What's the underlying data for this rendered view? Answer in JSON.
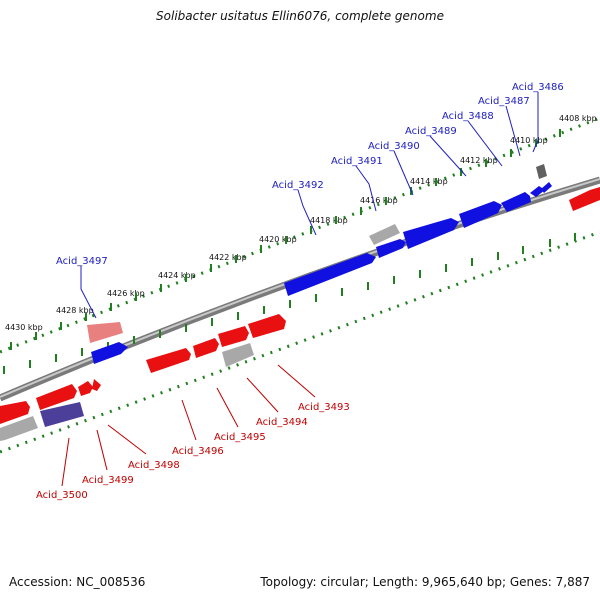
{
  "title": "Solibacter usitatus Ellin6076, complete genome",
  "accession": "Accession: NC_008536",
  "topology": "Topology: circular; Length: 9,965,640 bp; Genes: 7,887",
  "colors": {
    "forward_gene": "#1010e0",
    "reverse_gene": "#e81010",
    "rna_gene": "#a0a0a0",
    "forward_label": "#2020c0",
    "reverse_label": "#c00000",
    "ruler": "#208020",
    "backbone": "#808080"
  },
  "ruler_ticks": [
    "4408 kbp",
    "4410 kbp",
    "4412 kbp",
    "4414 kbp",
    "4416 kbp",
    "4418 kbp",
    "4420 kbp",
    "4422 kbp",
    "4424 kbp",
    "4426 kbp",
    "4428 kbp",
    "4430 kbp"
  ],
  "forward_labels": [
    "Acid_3486",
    "Acid_3487",
    "Acid_3488",
    "Acid_3489",
    "Acid_3490",
    "Acid_3491",
    "Acid_3492",
    "Acid_3497"
  ],
  "reverse_labels": [
    "Acid_3493",
    "Acid_3494",
    "Acid_3495",
    "Acid_3496",
    "Acid_3498",
    "Acid_3499",
    "Acid_3500"
  ]
}
